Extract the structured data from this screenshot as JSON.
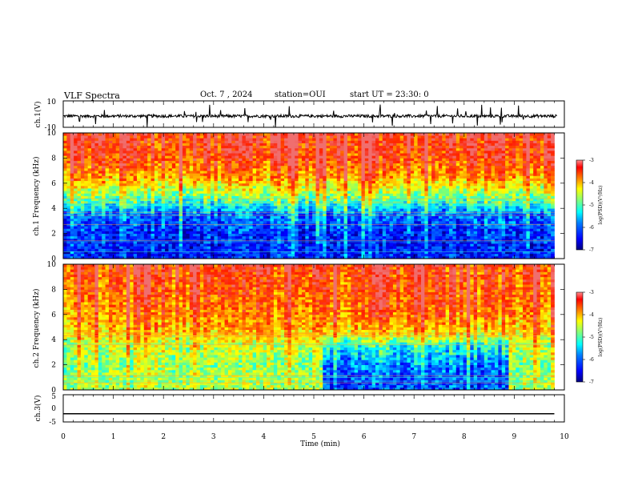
{
  "header": {
    "title": "VLF Spectra",
    "date": "Oct. 7 , 2024",
    "station": "station=OUI",
    "start": "start UT = 23:30: 0"
  },
  "colors": {
    "scale": [
      "#00007f",
      "#0000ff",
      "#007fff",
      "#00ffff",
      "#7fff7f",
      "#ffff00",
      "#ff7f00",
      "#ff0000",
      "#7f0000"
    ]
  },
  "chart_data": [
    {
      "type": "line",
      "panel": "ch1-waveform",
      "ylabel": "ch.1(V)",
      "ylim": [
        -10,
        10
      ],
      "y_ticks": [
        "10",
        "-10"
      ],
      "x": [
        0,
        10
      ],
      "level": -1.5,
      "xlim": [
        0,
        10
      ]
    },
    {
      "type": "heatmap",
      "panel": "ch1-spectrogram",
      "ylabel": "ch.1 Frequency (kHz)",
      "ylim": [
        0,
        10
      ],
      "y_ticks": [
        "0",
        "2",
        "4",
        "6",
        "8",
        "10"
      ],
      "xlim": [
        0,
        10.0
      ],
      "data_end_min": 9.8,
      "colorbar": {
        "label": "log(PSD)(V²/Hz)",
        "range": [
          -7,
          -3
        ],
        "ticks": [
          "-3",
          "-4",
          "-5",
          "-6",
          "-7"
        ]
      },
      "profile_by_frequency_khz": [
        [
          0.5,
          -6.4
        ],
        [
          2,
          -6.3
        ],
        [
          3.5,
          -6.0
        ],
        [
          5,
          -4.9
        ],
        [
          6.5,
          -4.0
        ],
        [
          8,
          -3.5
        ],
        [
          10,
          -3.3
        ]
      ]
    },
    {
      "type": "heatmap",
      "panel": "ch2-spectrogram",
      "ylabel": "ch.2 Frequency (kHz)",
      "ylim": [
        0,
        10
      ],
      "y_ticks": [
        "0",
        "2",
        "4",
        "6",
        "8",
        "10"
      ],
      "xlim": [
        0,
        10.0
      ],
      "data_end_min": 9.8,
      "colorbar": {
        "label": "log(PSD)(V²/Hz)",
        "range": [
          -7,
          -3
        ],
        "ticks": [
          "-3",
          "-4",
          "-5",
          "-6",
          "-7"
        ]
      },
      "quiet_interval_min": [
        5.2,
        8.9
      ],
      "profile_by_frequency_khz": [
        [
          0.5,
          -4.8
        ],
        [
          2,
          -4.9
        ],
        [
          3.7,
          -4.6
        ],
        [
          5,
          -4.1
        ],
        [
          7,
          -3.8
        ],
        [
          10,
          -3.5
        ]
      ],
      "profile_quiet_interval_khz": [
        [
          0.5,
          -6.2
        ],
        [
          2,
          -6.0
        ],
        [
          3.5,
          -5.4
        ],
        [
          4.5,
          -4.4
        ],
        [
          6,
          -3.8
        ],
        [
          10,
          -3.5
        ]
      ]
    },
    {
      "type": "line",
      "panel": "ch3-waveform",
      "ylabel": "ch.3(V)",
      "ylim": [
        -5,
        5
      ],
      "y_ticks": [
        "5",
        "0",
        "-5"
      ],
      "x": [
        0,
        9.8
      ],
      "y": [
        -2,
        -2
      ],
      "xlim": [
        0,
        10
      ]
    }
  ],
  "xaxis": {
    "label": "Time (min)",
    "ticks": [
      "0",
      "1",
      "2",
      "3",
      "4",
      "5",
      "6",
      "7",
      "8",
      "9",
      "10"
    ]
  }
}
